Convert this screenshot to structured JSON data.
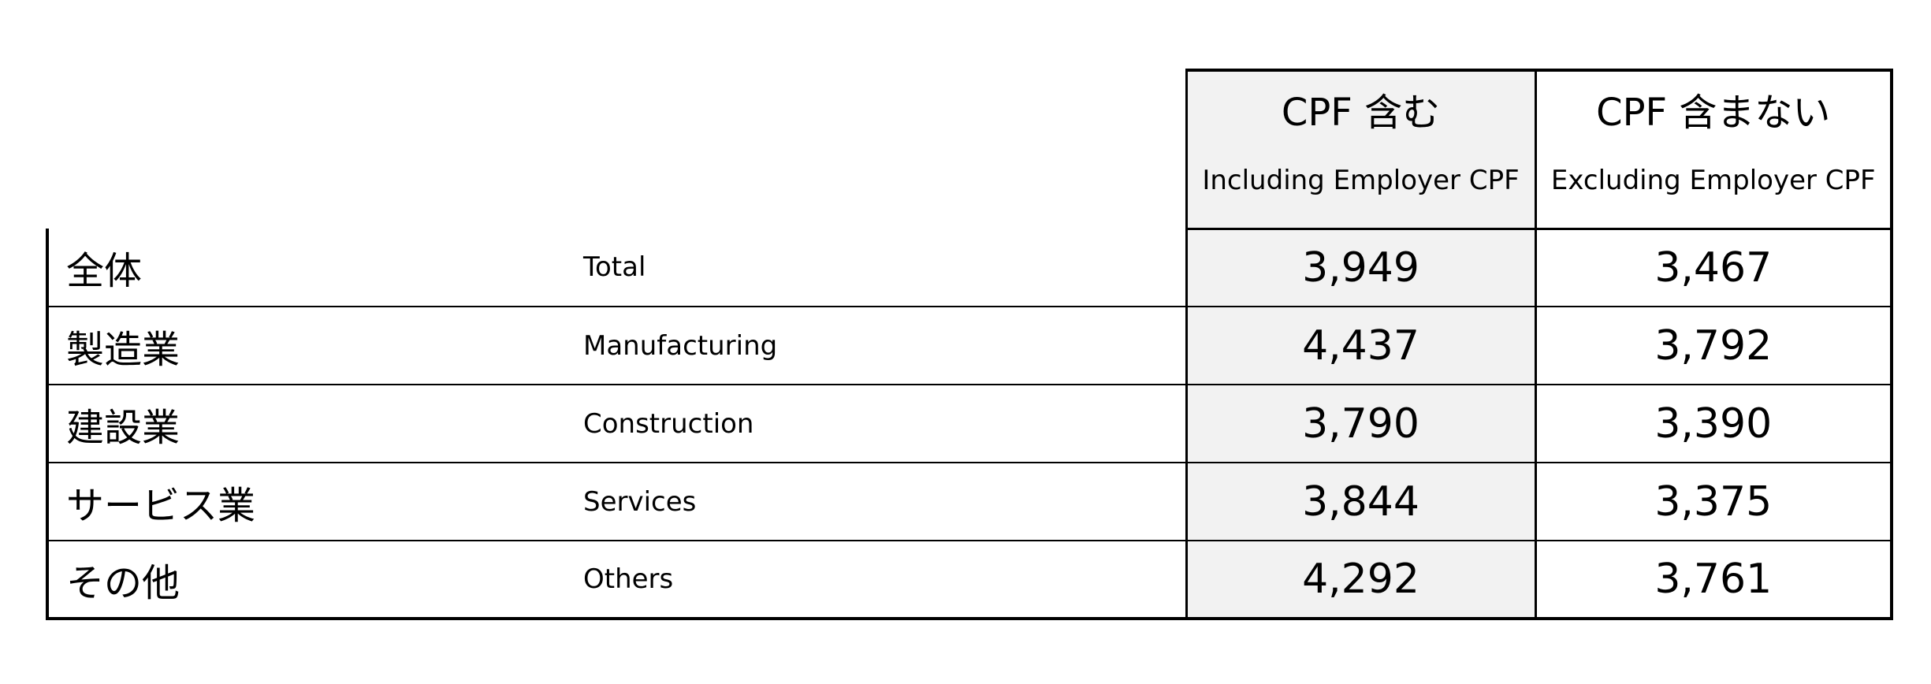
{
  "columns": {
    "including": {
      "jp": "CPF 含む",
      "en": "Including Employer CPF"
    },
    "excluding": {
      "jp": "CPF 含まない",
      "en": "Excluding Employer CPF"
    }
  },
  "rows": [
    {
      "jp": "全体",
      "en": "Total",
      "including": "3,949",
      "excluding": "3,467"
    },
    {
      "jp": "製造業",
      "en": "Manufacturing",
      "including": "4,437",
      "excluding": "3,792"
    },
    {
      "jp": "建設業",
      "en": "Construction",
      "including": "3,790",
      "excluding": "3,390"
    },
    {
      "jp": "サービス業",
      "en": "Services",
      "including": "3,844",
      "excluding": "3,375"
    },
    {
      "jp": "その他",
      "en": "Others",
      "including": "4,292",
      "excluding": "3,761"
    }
  ],
  "colors": {
    "highlight_column_bg": "#f2f2f2",
    "border": "#000000"
  }
}
